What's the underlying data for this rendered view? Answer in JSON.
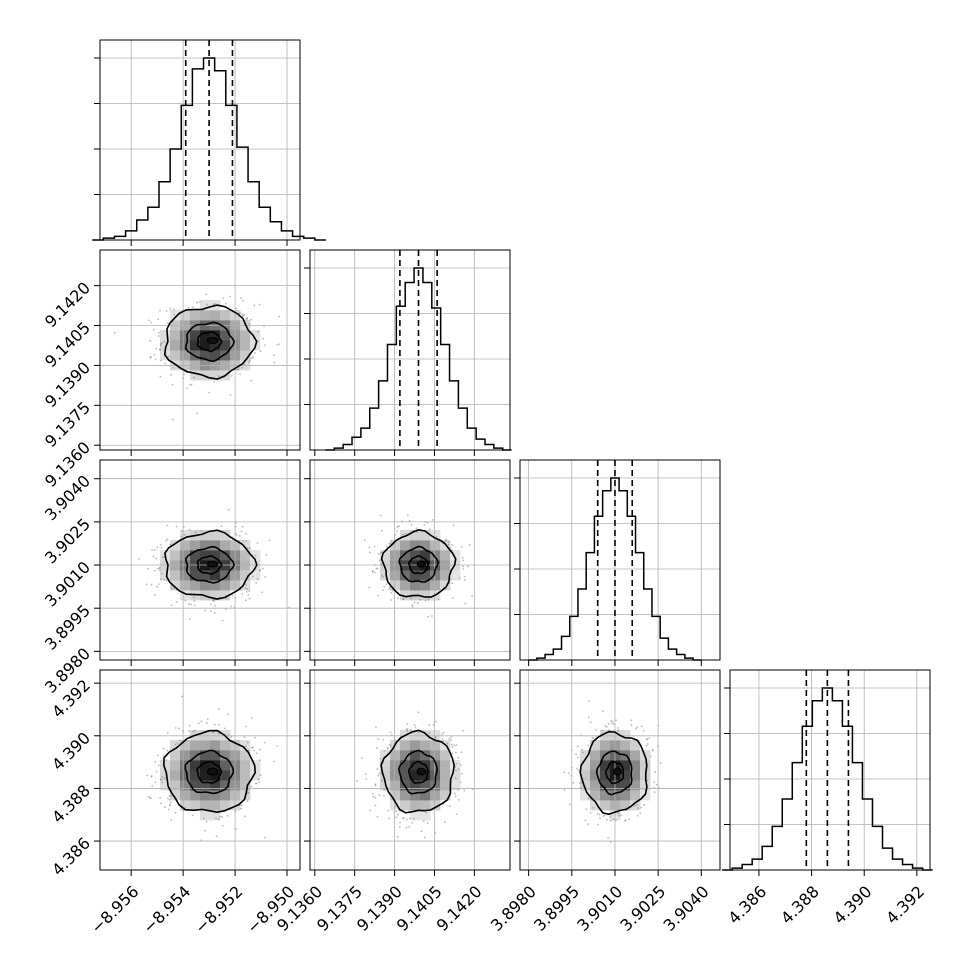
{
  "chart_data": {
    "type": "corner",
    "colors": {
      "line": "#000000",
      "grid": "#b0b0b0",
      "scatter": "#7f7f7f",
      "background": "#ffffff"
    },
    "grid": true,
    "parameters": [
      {
        "range": [
          -8.9572,
          -8.9495
        ],
        "ticks": [
          -8.956,
          -8.954,
          -8.952,
          -8.95
        ],
        "tick_labels": [
          "−8.956",
          "−8.954",
          "−8.952",
          "−8.950"
        ],
        "quantiles": [
          -8.9539,
          -8.953,
          -8.9521
        ],
        "mean": -8.953,
        "hist_counts": [
          0,
          1,
          2,
          5,
          11,
          18,
          32,
          50,
          74,
          94,
          100,
          93,
          74,
          51,
          32,
          18,
          10,
          5,
          2,
          1,
          0
        ]
      },
      {
        "range": [
          9.13582,
          9.14334
        ],
        "ticks": [
          9.136,
          9.1375,
          9.139,
          9.1405,
          9.142
        ],
        "tick_labels": [
          "9.1360",
          "9.1375",
          "9.1390",
          "9.1405",
          "9.1420"
        ],
        "quantiles": [
          9.1392,
          9.1399,
          9.1406
        ],
        "mean": 9.1399,
        "hist_counts": [
          0,
          1,
          3,
          7,
          12,
          23,
          38,
          58,
          79,
          92,
          100,
          92,
          78,
          58,
          38,
          23,
          12,
          6,
          3,
          1,
          0
        ]
      },
      {
        "range": [
          3.8977,
          3.90465
        ],
        "ticks": [
          3.898,
          3.8995,
          3.901,
          3.9025,
          3.904
        ],
        "tick_labels": [
          "3.8980",
          "3.8995",
          "3.9010",
          "3.9025",
          "3.9040"
        ],
        "quantiles": [
          3.9004,
          3.901,
          3.9016
        ],
        "mean": 3.901,
        "hist_counts": [
          0,
          1,
          3,
          6,
          13,
          24,
          39,
          59,
          79,
          93,
          100,
          93,
          79,
          59,
          39,
          24,
          12,
          6,
          3,
          1,
          0
        ]
      },
      {
        "range": [
          4.3849,
          4.3925
        ],
        "ticks": [
          4.386,
          4.388,
          4.39,
          4.392
        ],
        "tick_labels": [
          "4.386",
          "4.388",
          "4.390",
          "4.392"
        ],
        "quantiles": [
          4.3878,
          4.3886,
          4.3894
        ],
        "mean": 4.3886,
        "hist_counts": [
          0,
          1,
          3,
          6,
          13,
          24,
          39,
          59,
          79,
          93,
          100,
          93,
          79,
          59,
          39,
          24,
          12,
          6,
          3,
          1,
          0
        ]
      }
    ],
    "contour_levels": [
      1,
      2,
      3
    ]
  }
}
